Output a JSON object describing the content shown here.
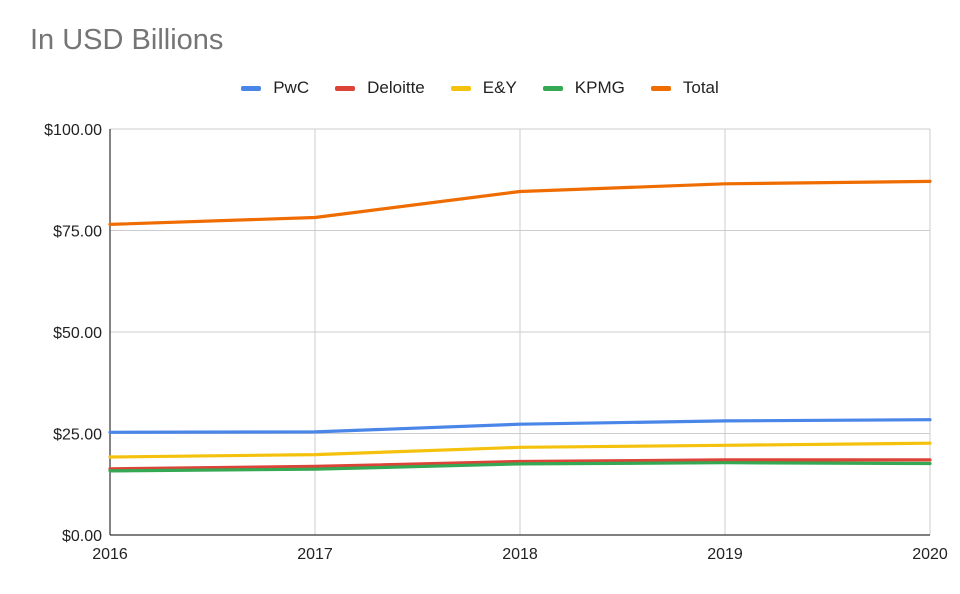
{
  "chart_data": {
    "type": "line",
    "title": "In USD Billions",
    "x": [
      "2016",
      "2017",
      "2018",
      "2019",
      "2020"
    ],
    "yticks": [
      "$0.00",
      "$25.00",
      "$50.00",
      "$75.00",
      "$100.00"
    ],
    "ylim": [
      0,
      100
    ],
    "grid": true,
    "legend_position": "top",
    "series": [
      {
        "name": "PwC",
        "color": "#4a86e8",
        "values": [
          25.3,
          25.4,
          27.3,
          28.1,
          28.4
        ]
      },
      {
        "name": "Deloitte",
        "color": "#db4437",
        "values": [
          16.3,
          16.9,
          18.1,
          18.5,
          18.5
        ]
      },
      {
        "name": "E&Y",
        "color": "#f4c20d",
        "values": [
          19.2,
          19.8,
          21.6,
          22.1,
          22.6
        ]
      },
      {
        "name": "KPMG",
        "color": "#34a853",
        "values": [
          15.8,
          16.2,
          17.5,
          17.8,
          17.6
        ]
      },
      {
        "name": "Total",
        "color": "#ef6c00",
        "values": [
          76.5,
          78.2,
          84.6,
          86.5,
          87.1
        ]
      }
    ]
  }
}
